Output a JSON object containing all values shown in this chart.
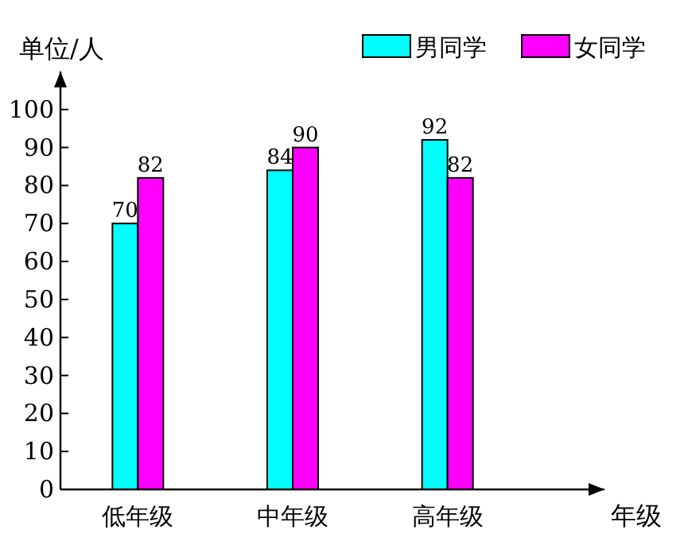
{
  "chart_data": {
    "type": "bar",
    "ylabel": "单位/人",
    "xlabel": "年级",
    "categories": [
      "低年级",
      "中年级",
      "高年级"
    ],
    "series": [
      {
        "name": "男同学",
        "color": "#00ffff",
        "values": [
          70,
          84,
          92
        ]
      },
      {
        "name": "女同学",
        "color": "#ff00ff",
        "values": [
          82,
          90,
          82
        ]
      }
    ],
    "ylim": [
      0,
      110
    ],
    "yticks": [
      0,
      10,
      20,
      30,
      40,
      50,
      60,
      70,
      80,
      90,
      100
    ],
    "data_labels": true,
    "legend": "top right"
  }
}
